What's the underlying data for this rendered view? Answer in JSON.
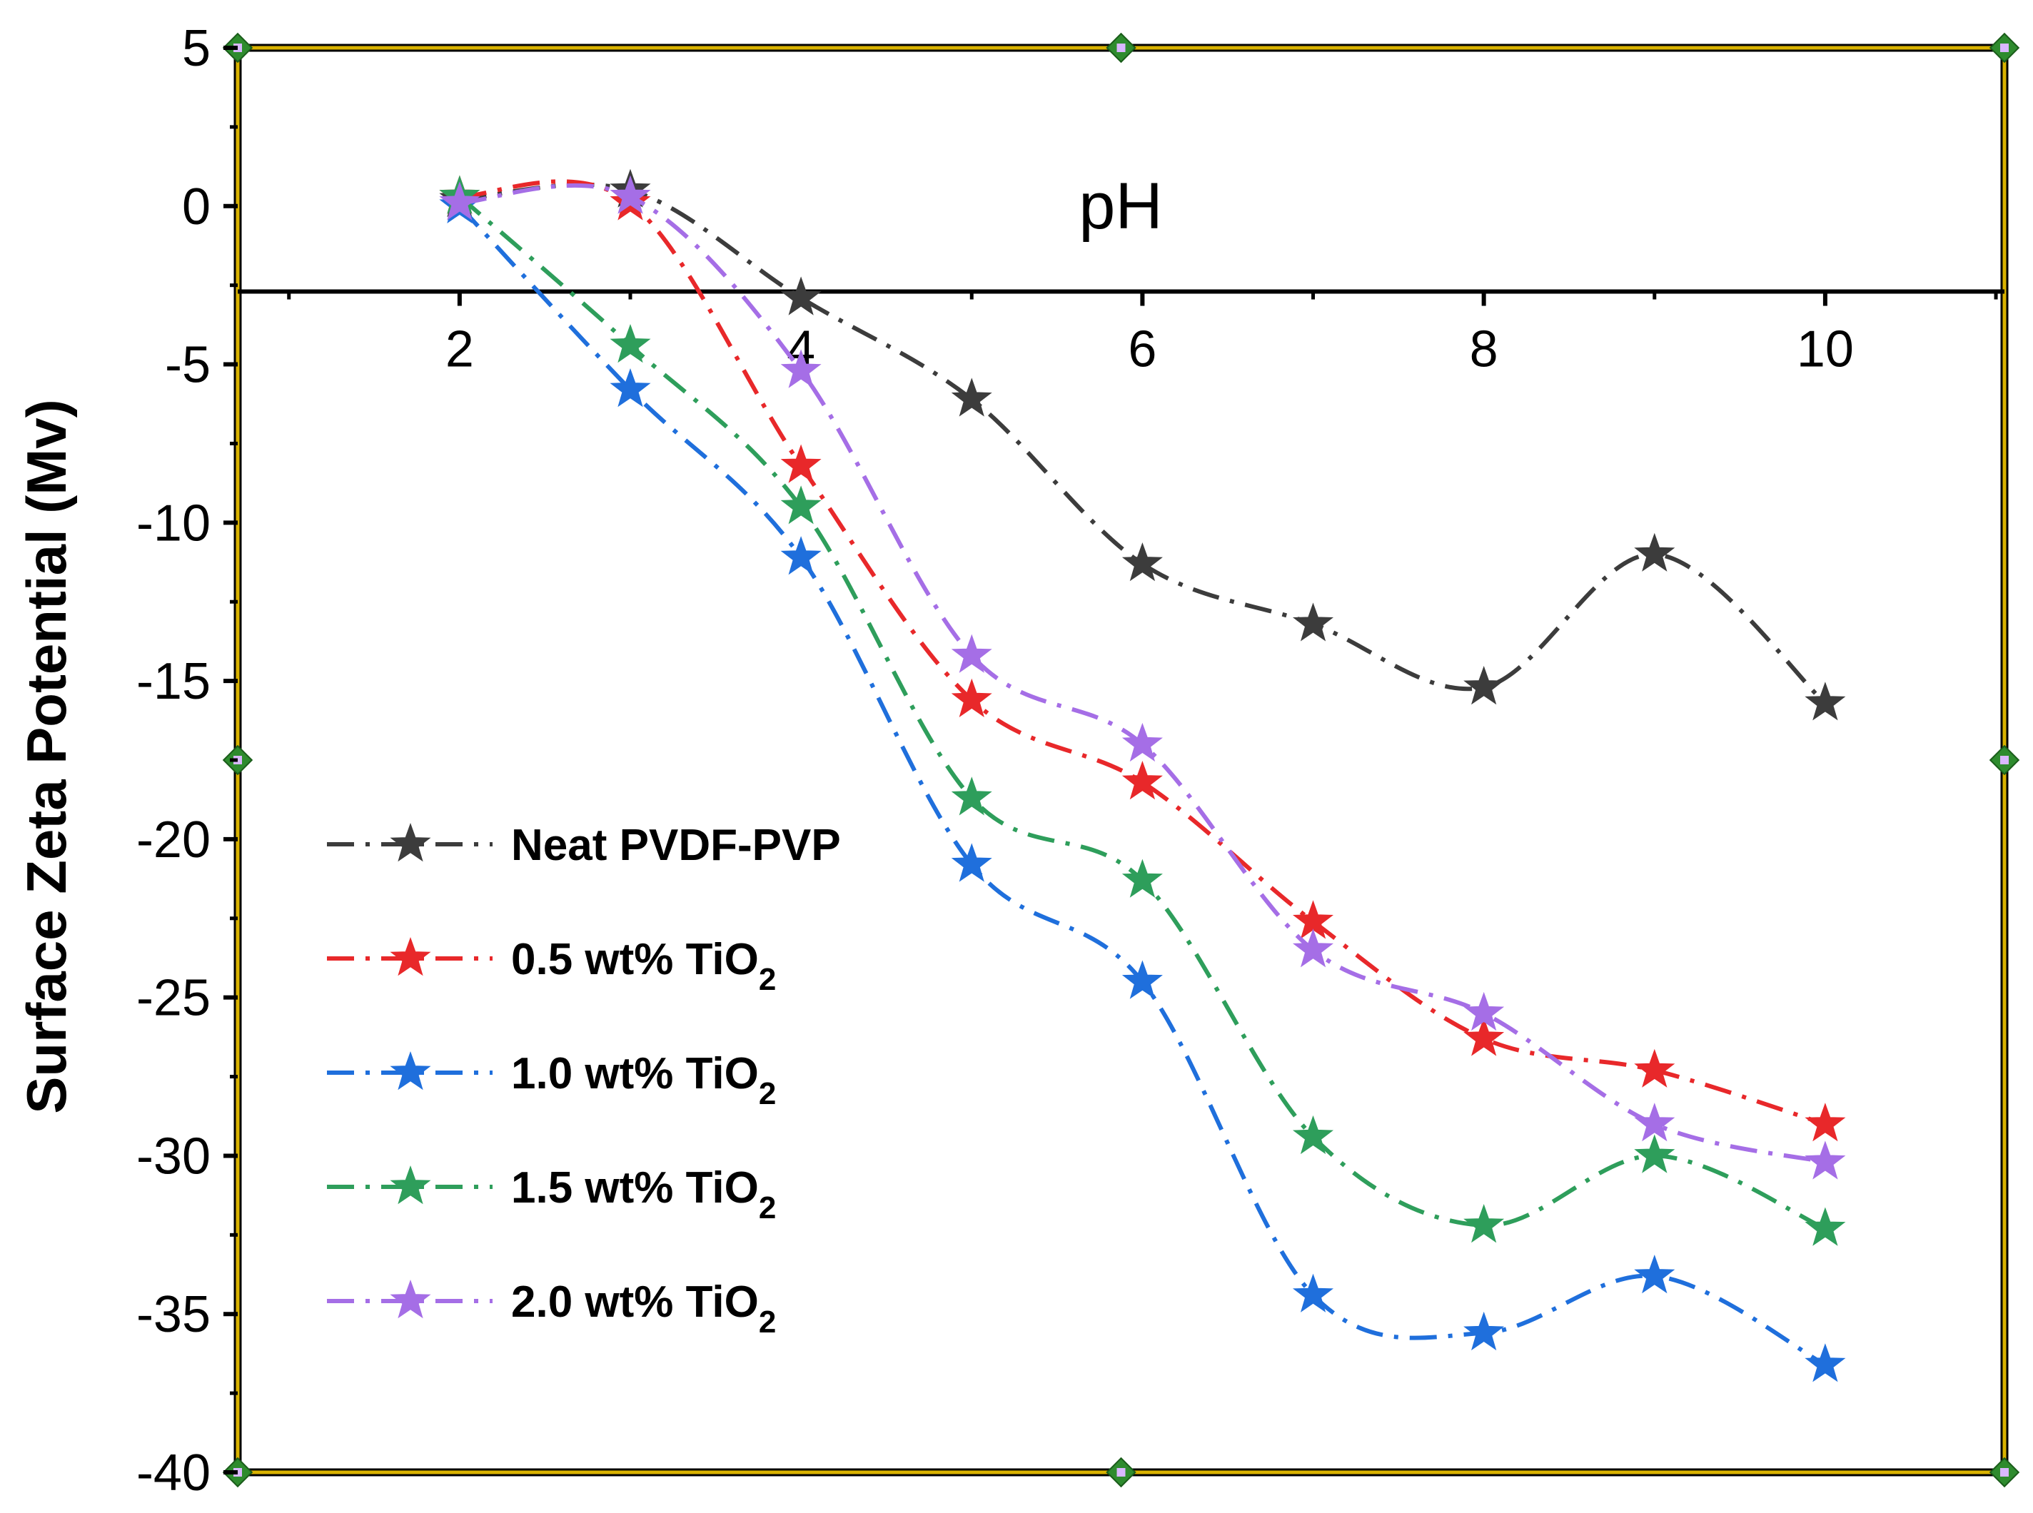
{
  "chart_data": {
    "type": "line",
    "title": "",
    "xlabel": "pH",
    "ylabel": "Surface Zeta Potential (Mv)",
    "xlim": [
      0.7,
      11.05
    ],
    "ylim": [
      -40,
      5
    ],
    "x_ticks": [
      "2",
      "4",
      "6",
      "8",
      "10"
    ],
    "x_tick_values": [
      2,
      4,
      6,
      8,
      10
    ],
    "y_ticks": [
      "5",
      "0",
      "-5",
      "-10",
      "-15",
      "-20",
      "-25",
      "-30",
      "-35",
      "-40"
    ],
    "y_tick_values": [
      5,
      0,
      -5,
      -10,
      -15,
      -20,
      -25,
      -30,
      -35,
      -40
    ],
    "x_axis_crosses_y_at": -2.7,
    "grid": false,
    "legend_position": "middle-left",
    "marker": "star",
    "line_style": "dash-dot, smoothed",
    "frame_color": "#d9b200",
    "x": [
      2,
      3,
      4,
      5,
      6,
      7,
      8,
      9,
      10
    ],
    "series": [
      {
        "name": "Neat PVDF-PVP",
        "label_main": "Neat PVDF-PVP",
        "label_sub": "",
        "color": "#3c3c3c",
        "values": [
          0.2,
          0.5,
          -2.9,
          -6.1,
          -11.3,
          -13.2,
          -15.2,
          -11.0,
          -15.7
        ]
      },
      {
        "name": "0.5 wt% TiO2",
        "label_main": "0.5 wt%  TiO",
        "label_sub": "2",
        "color": "#e8282a",
        "values": [
          0.3,
          0.1,
          -8.2,
          -15.6,
          -18.2,
          -22.6,
          -26.3,
          -27.3,
          -29.0
        ]
      },
      {
        "name": "1.0 wt% TiO2",
        "label_main": "1.0 wt%  TiO",
        "label_sub": "2",
        "color": "#1f6fdc",
        "values": [
          0.0,
          -5.8,
          -11.1,
          -20.8,
          -24.5,
          -34.4,
          -35.6,
          -33.8,
          -36.6
        ]
      },
      {
        "name": "1.5 wt% TiO2",
        "label_main": "1.5 wt%  TiO",
        "label_sub": "2",
        "color": "#2e9e5b",
        "values": [
          0.3,
          -4.4,
          -9.5,
          -18.7,
          -21.3,
          -29.4,
          -32.2,
          -30.0,
          -32.3
        ]
      },
      {
        "name": "2.0 wt% TiO2",
        "label_main": "2.0 wt%  TiO",
        "label_sub": "2",
        "color": "#a56ee6",
        "values": [
          0.1,
          0.3,
          -5.2,
          -14.2,
          -17.0,
          -23.5,
          -25.5,
          -29.0,
          -30.2
        ]
      }
    ]
  }
}
